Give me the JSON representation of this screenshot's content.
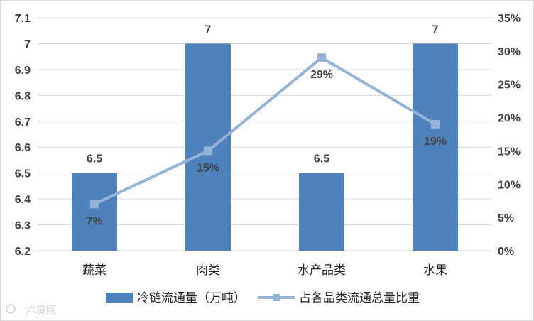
{
  "chart_data": {
    "type": "bar+line",
    "categories": [
      "蔬菜",
      "肉类",
      "水产品类",
      "水果"
    ],
    "series": [
      {
        "name": "冷链流通量（万吨）",
        "type": "bar",
        "axis": "left",
        "color": "#4F81BD",
        "values": [
          6.5,
          7,
          6.5,
          7
        ],
        "labels": [
          "6.5",
          "7",
          "6.5",
          "7"
        ]
      },
      {
        "name": "占各品类流通总量比重",
        "type": "line",
        "axis": "right",
        "color": "#95B3D7",
        "values": [
          7,
          15,
          29,
          19
        ],
        "labels": [
          "7%",
          "15%",
          "29%",
          "19%"
        ]
      }
    ],
    "y_left": {
      "min": 6.2,
      "max": 7.1,
      "ticks": [
        "6.2",
        "6.3",
        "6.4",
        "6.5",
        "6.6",
        "6.7",
        "6.8",
        "6.9",
        "7",
        "7.1"
      ]
    },
    "y_right": {
      "min": 0,
      "max": 35,
      "ticks": [
        "0%",
        "5%",
        "10%",
        "15%",
        "20%",
        "25%",
        "30%",
        "35%"
      ]
    },
    "grid": true,
    "legend": "bottom"
  },
  "watermark": "六度网"
}
